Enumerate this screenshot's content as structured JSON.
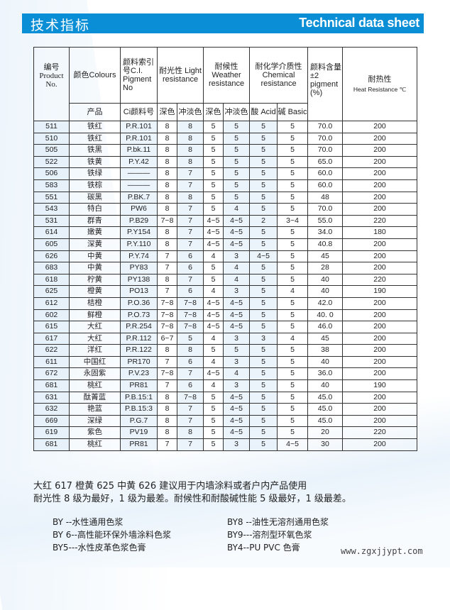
{
  "banner": {
    "title_cn": "技术指标",
    "title_en": "Technical data sheet",
    "color": "#0a8fd6"
  },
  "table": {
    "headers": {
      "product_no": "编号 Product No.",
      "colours": "颜色Colours",
      "ci_pigment": "颜料索引号C.I. Pigment No",
      "light": "耐光性 Light resistance",
      "weather": "耐候性 Weather resistance",
      "chemical": "耐化学介质性 Chemical resistance",
      "pigment_content": "颜料含量±2 pigment (%)",
      "heat": "耐热性",
      "heat_en": "Heat Resistance ℃",
      "product": "产品",
      "ci_no": "Ci颜料号",
      "light_deep": "深色",
      "light_tint": "冲淡色",
      "weather_deep": "深色",
      "weather_tint": "冲淡色",
      "acid": "酸 Acid",
      "basic": "碱 Basic"
    },
    "rows": [
      [
        "511",
        "铁红",
        "P.R.101",
        "8",
        "8",
        "5",
        "5",
        "5",
        "5",
        "70.0",
        "200"
      ],
      [
        "510",
        "铁红",
        "P.R.101",
        "8",
        "8",
        "5",
        "5",
        "5",
        "5",
        "70.0",
        "200"
      ],
      [
        "505",
        "铁黑",
        "P.bk.11",
        "8",
        "8",
        "5",
        "5",
        "5",
        "5",
        "70.0",
        "200"
      ],
      [
        "522",
        "铁黄",
        "P.Y.42",
        "8",
        "8",
        "5",
        "5",
        "5",
        "5",
        "65.0",
        "200"
      ],
      [
        "506",
        "铁绿",
        "———",
        "8",
        "7",
        "5",
        "5",
        "5",
        "5",
        "60.0",
        "200"
      ],
      [
        "583",
        "铁棕",
        "———",
        "8",
        "7",
        "5",
        "5",
        "5",
        "5",
        "60.0",
        "200"
      ],
      [
        "551",
        "碳黑",
        "P.BK.7",
        "8",
        "8",
        "5",
        "5",
        "5",
        "5",
        "48",
        "200"
      ],
      [
        "543",
        "特白",
        "PW6",
        "8",
        "7",
        "5",
        "4",
        "5",
        "5",
        "70.0",
        "200"
      ],
      [
        "531",
        "群青",
        "P.B29",
        "7~8",
        "7",
        "4~5",
        "4~5",
        "2",
        "3~4",
        "55.0",
        "220"
      ],
      [
        "614",
        "嫩黄",
        "P.Y154",
        "8",
        "7",
        "4~5",
        "4~5",
        "5",
        "5",
        "34.0",
        "180"
      ],
      [
        "605",
        "深黄",
        "P.Y.110",
        "8",
        "7",
        "4~5",
        "4~5",
        "5",
        "5",
        "40.8",
        "200"
      ],
      [
        "626",
        "中黄",
        "P.Y.74",
        "7",
        "6",
        "4",
        "3",
        "4~5",
        "5",
        "45",
        "200"
      ],
      [
        "683",
        "中黄",
        "PY83",
        "7",
        "6",
        "5",
        "4",
        "5",
        "5",
        "28",
        "200"
      ],
      [
        "618",
        "柠黄",
        "PY138",
        "8",
        "7",
        "5",
        "4",
        "5",
        "5",
        "40",
        "220"
      ],
      [
        "625",
        "橙黄",
        "PO13",
        "7",
        "6",
        "4",
        "3",
        "5",
        "4",
        "40",
        "190"
      ],
      [
        "612",
        "桔橙",
        "P.O.36",
        "7~8",
        "7~8",
        "4~5",
        "4~5",
        "5",
        "5",
        "42.0",
        "200"
      ],
      [
        "602",
        "鲜橙",
        "P.O.73",
        "7~8",
        "7~8",
        "4~5",
        "4~5",
        "5",
        "5",
        "40. 0",
        "200"
      ],
      [
        "615",
        "大红",
        "P.R.254",
        "7~8",
        "7~8",
        "4~5",
        "4~5",
        "5",
        "5",
        "46.0",
        "200"
      ],
      [
        "617",
        "大红",
        "P.R.112",
        "6~7",
        "5",
        "4",
        "3",
        "3",
        "4",
        "45",
        "200"
      ],
      [
        "622",
        "洋红",
        "P.R.122",
        "8",
        "8",
        "5",
        "5",
        "5",
        "5",
        "38",
        "200"
      ],
      [
        "611",
        "中国红",
        "PR170",
        "7",
        "6",
        "4",
        "3",
        "5",
        "5",
        "40",
        "200"
      ],
      [
        "672",
        "永固紫",
        "P.V.23",
        "7~8",
        "7",
        "4~5",
        "4",
        "5",
        "5",
        "36.0",
        "200"
      ],
      [
        "681",
        "桃红",
        "PR81",
        "7",
        "6",
        "4",
        "3",
        "5",
        "5",
        "40",
        "190"
      ],
      [
        "631",
        "酞菁蓝",
        "P.B.15:1",
        "8",
        "7~8",
        "5",
        "4~5",
        "5",
        "5",
        "45.0",
        "200"
      ],
      [
        "632",
        "艳蓝",
        "P.B.15:3",
        "8",
        "7",
        "5",
        "4~5",
        "5",
        "5",
        "45.0",
        "200"
      ],
      [
        "669",
        "深绿",
        "P.G.7",
        "8",
        "7",
        "5",
        "4~5",
        "5",
        "5",
        "45.0",
        "200"
      ],
      [
        "619",
        "紫色",
        "PV19",
        "8",
        "8",
        "5",
        "4~5",
        "5",
        "5",
        "20",
        "220"
      ],
      [
        "681",
        "桃红",
        "PR81",
        "7",
        "7",
        "5",
        "3",
        "5",
        "4~5",
        "30",
        "200"
      ]
    ]
  },
  "notes": {
    "line1": "大红 617  橙黄 625  中黄 626  建议用于内墙涂料或者户内产品使用",
    "line2": "耐光性 8 级为最好，1 级为最差。耐候性和耐酸碱性能 5 级最好，1 级最差。"
  },
  "series": [
    "BY --水性通用色浆",
    "BY8 --油性无溶剂通用色浆",
    "BY 6--高性能环保外墙涂料色浆",
    "BY9---溶剂型环氧色浆",
    "BY5---水性皮革色浆色膏",
    "BY4--PU    PVC 色膏"
  ],
  "watermark": "www.zgxjjypt.com"
}
